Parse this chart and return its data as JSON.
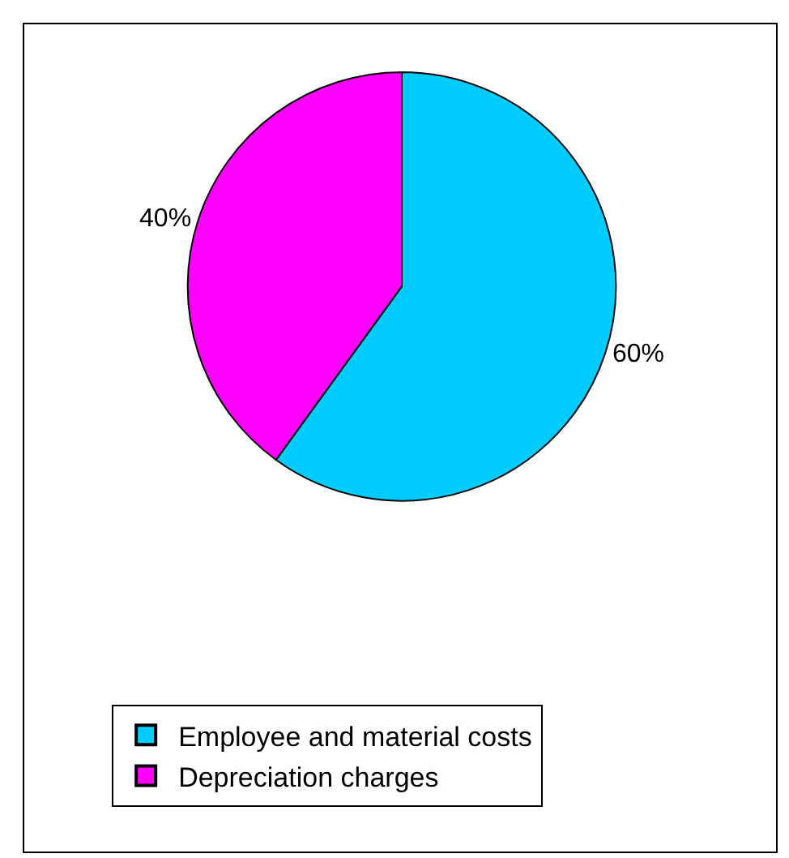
{
  "chart_data": {
    "type": "pie",
    "categories": [
      "Employee and material costs",
      "Depreciation charges"
    ],
    "values": [
      60,
      40
    ],
    "colors": [
      "#00ccff",
      "#ff00ff"
    ],
    "value_labels": [
      "60%",
      "40%"
    ],
    "legend": "bottom"
  }
}
